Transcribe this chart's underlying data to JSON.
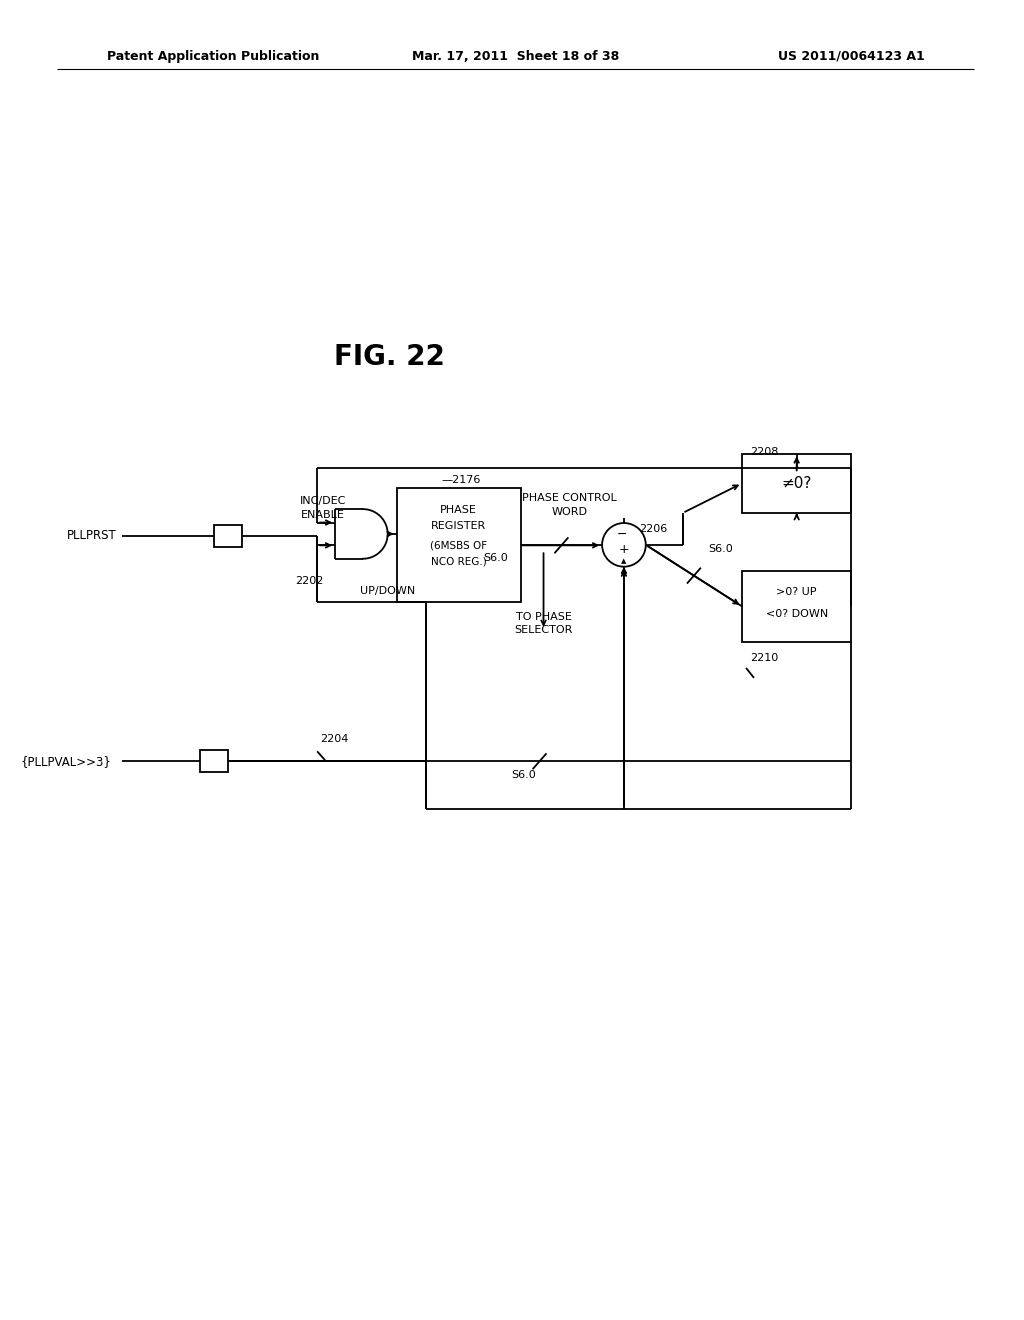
{
  "header_left": "Patent Application Publication",
  "header_mid": "Mar. 17, 2011  Sheet 18 of 38",
  "header_right": "US 2011/0064123 A1",
  "fig_label": "FIG. 22",
  "bg_color": "#ffffff"
}
